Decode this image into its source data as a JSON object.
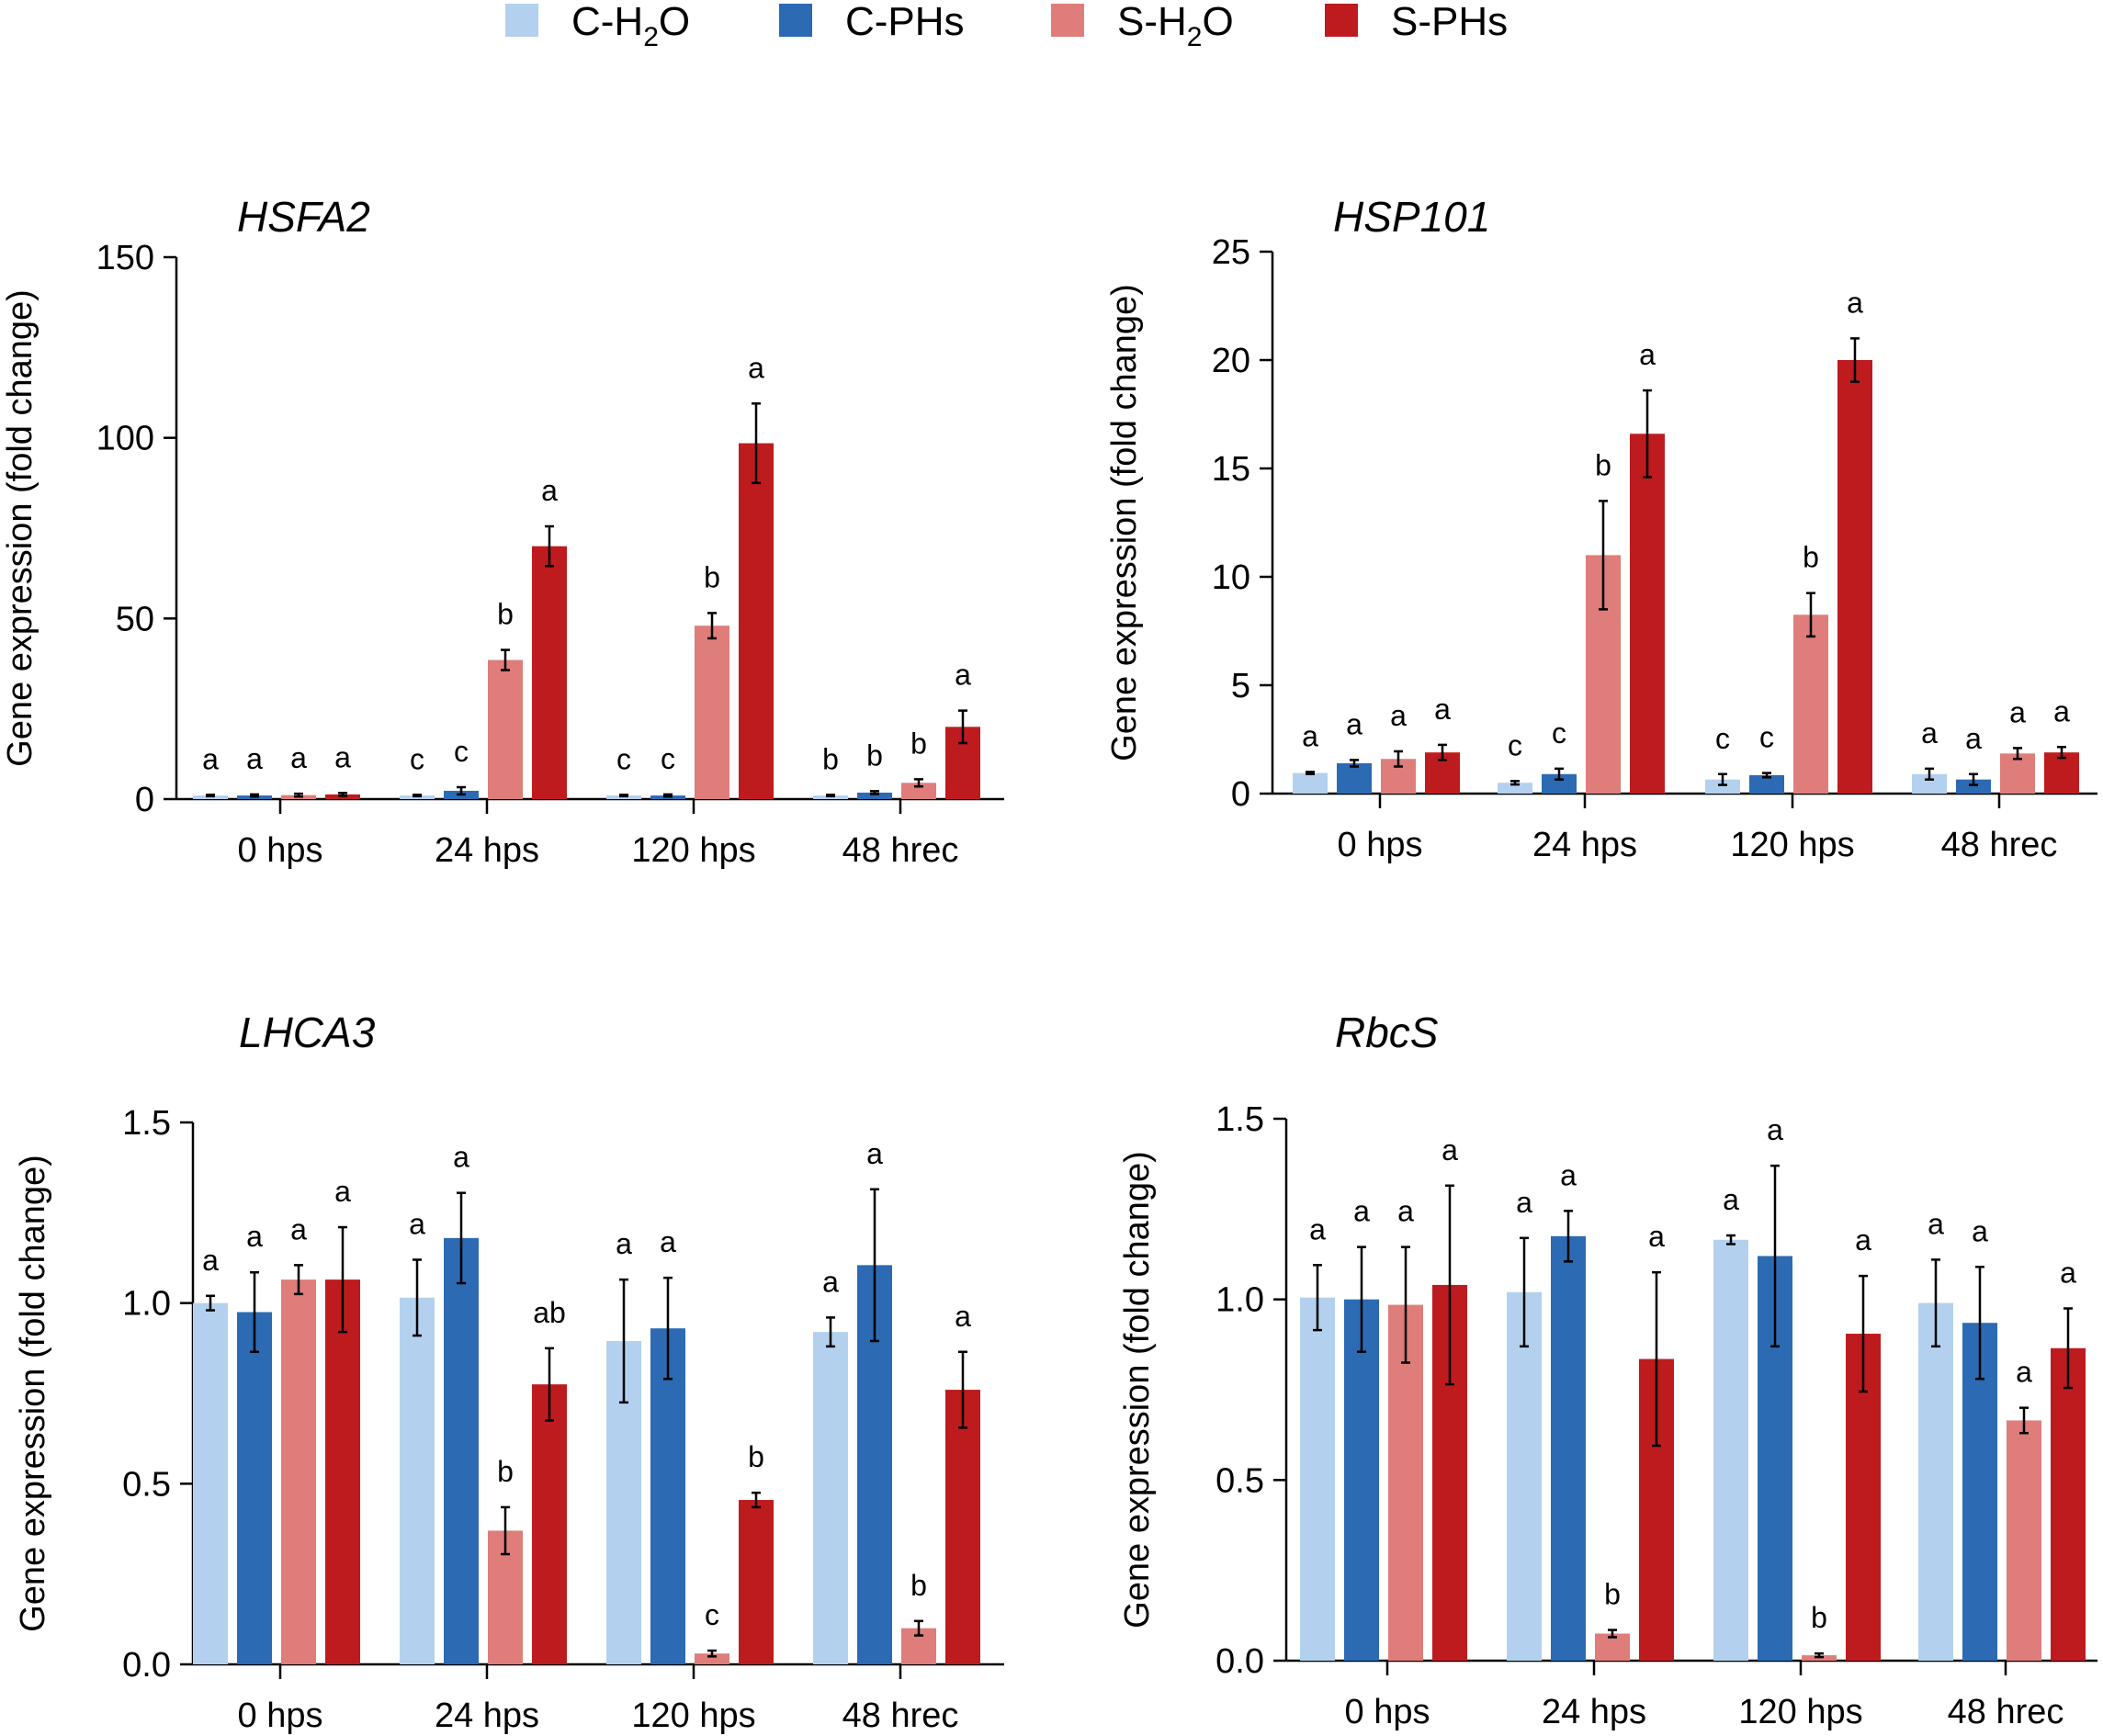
{
  "legend": {
    "items": [
      {
        "label": "C-H",
        "sub": "2",
        "tail": "O",
        "color": "#b3d1ee"
      },
      {
        "label": "C-PHs",
        "sub": "",
        "tail": "",
        "color": "#2c6ab3"
      },
      {
        "label": "S-H",
        "sub": "2",
        "tail": "O",
        "color": "#de7d7a"
      },
      {
        "label": "S-PHs",
        "sub": "",
        "tail": "",
        "color": "#be1b1e"
      }
    ]
  },
  "chart_data": [
    {
      "type": "bar",
      "title": "HSFA2",
      "ylabel": "Gene expression (fold change)",
      "xlabel": "",
      "ylim": [
        0,
        150
      ],
      "yticks": [
        0,
        50,
        100,
        150
      ],
      "ytick_labels": [
        "0",
        "50",
        "100",
        "150"
      ],
      "categories": [
        "0 hps",
        "24 hps",
        "120 hps",
        "48 hrec"
      ],
      "series": [
        {
          "name": "C-H2O",
          "values": [
            1.0,
            1.0,
            1.0,
            1.0
          ],
          "errors": [
            0.2,
            0.2,
            0.2,
            0.2
          ],
          "letters": [
            "a",
            "c",
            "c",
            "b"
          ]
        },
        {
          "name": "C-PHs",
          "values": [
            1.0,
            2.3,
            1.0,
            1.8
          ],
          "errors": [
            0.3,
            1.0,
            0.3,
            0.4
          ],
          "letters": [
            "a",
            "c",
            "c",
            "b"
          ]
        },
        {
          "name": "S-H2O",
          "values": [
            1.1,
            38.5,
            48.0,
            4.5
          ],
          "errors": [
            0.4,
            2.8,
            3.5,
            1.0
          ],
          "letters": [
            "a",
            "b",
            "b",
            "b"
          ]
        },
        {
          "name": "S-PHs",
          "values": [
            1.3,
            70.0,
            98.5,
            20.0
          ],
          "errors": [
            0.4,
            5.5,
            11.0,
            4.5
          ],
          "letters": [
            "a",
            "a",
            "a",
            "a"
          ]
        }
      ]
    },
    {
      "type": "bar",
      "title": "HSP101",
      "ylabel": "Gene expression (fold change)",
      "xlabel": "",
      "ylim": [
        0,
        25
      ],
      "yticks": [
        0,
        5,
        10,
        15,
        20,
        25
      ],
      "ytick_labels": [
        "0",
        "5",
        "10",
        "15",
        "20",
        "25"
      ],
      "categories": [
        "0 hps",
        "24 hps",
        "120 hps",
        "48 hrec"
      ],
      "series": [
        {
          "name": "C-H2O",
          "values": [
            0.95,
            0.5,
            0.65,
            0.9
          ],
          "errors": [
            0.05,
            0.08,
            0.25,
            0.25
          ],
          "letters": [
            "a",
            "c",
            "c",
            "a"
          ]
        },
        {
          "name": "C-PHs",
          "values": [
            1.4,
            0.9,
            0.85,
            0.65
          ],
          "errors": [
            0.15,
            0.25,
            0.1,
            0.25
          ],
          "letters": [
            "a",
            "c",
            "c",
            "a"
          ]
        },
        {
          "name": "S-H2O",
          "values": [
            1.6,
            11.0,
            8.25,
            1.85
          ],
          "errors": [
            0.35,
            2.5,
            1.0,
            0.25
          ],
          "letters": [
            "a",
            "b",
            "b",
            "a"
          ]
        },
        {
          "name": "S-PHs",
          "values": [
            1.9,
            16.6,
            20.0,
            1.9
          ],
          "errors": [
            0.35,
            2.0,
            1.0,
            0.25
          ],
          "letters": [
            "a",
            "a",
            "a",
            "a"
          ]
        }
      ]
    },
    {
      "type": "bar",
      "title": "LHCA3",
      "ylabel": "Gene expression (fold change)",
      "xlabel": "",
      "ylim": [
        0,
        1.5
      ],
      "yticks": [
        0,
        0.5,
        1.0,
        1.5
      ],
      "ytick_labels": [
        "0.0",
        "0.5",
        "1.0",
        "1.5"
      ],
      "categories": [
        "0 hps",
        "24 hps",
        "120 hps",
        "48 hrec"
      ],
      "series": [
        {
          "name": "C-H2O",
          "values": [
            1.0,
            1.015,
            0.895,
            0.92
          ],
          "errors": [
            0.02,
            0.105,
            0.17,
            0.04
          ],
          "letters": [
            "a",
            "a",
            "a",
            "a"
          ]
        },
        {
          "name": "C-PHs",
          "values": [
            0.975,
            1.18,
            0.93,
            1.105
          ],
          "errors": [
            0.11,
            0.125,
            0.14,
            0.21
          ],
          "letters": [
            "a",
            "a",
            "a",
            "a"
          ]
        },
        {
          "name": "S-H2O",
          "values": [
            1.065,
            0.37,
            0.03,
            0.1
          ],
          "errors": [
            0.04,
            0.065,
            0.008,
            0.02
          ],
          "letters": [
            "a",
            "b",
            "c",
            "b"
          ]
        },
        {
          "name": "S-PHs",
          "values": [
            1.065,
            0.775,
            0.455,
            0.76
          ],
          "errors": [
            0.145,
            0.1,
            0.02,
            0.105
          ],
          "letters": [
            "a",
            "ab",
            "b",
            "a"
          ]
        }
      ]
    },
    {
      "type": "bar",
      "title": "RbcS",
      "ylabel": "Gene expression (fold change)",
      "xlabel": "",
      "ylim": [
        0,
        1.5
      ],
      "yticks": [
        0,
        0.5,
        1.0,
        1.5
      ],
      "ytick_labels": [
        "0.0",
        "0.5",
        "1.0",
        "1.5"
      ],
      "categories": [
        "0 hps",
        "24 hps",
        "120 hps",
        "48 hrec"
      ],
      "series": [
        {
          "name": "C-H2O",
          "values": [
            1.005,
            1.02,
            1.165,
            0.99
          ],
          "errors": [
            0.09,
            0.15,
            0.012,
            0.12
          ],
          "letters": [
            "a",
            "a",
            "a",
            "a"
          ]
        },
        {
          "name": "C-PHs",
          "values": [
            1.0,
            1.175,
            1.12,
            0.935
          ],
          "errors": [
            0.145,
            0.07,
            0.25,
            0.155
          ],
          "letters": [
            "a",
            "a",
            "a",
            "a"
          ]
        },
        {
          "name": "S-H2O",
          "values": [
            0.985,
            0.075,
            0.015,
            0.665
          ],
          "errors": [
            0.16,
            0.01,
            0.005,
            0.035
          ],
          "letters": [
            "a",
            "b",
            "b",
            "a"
          ]
        },
        {
          "name": "S-PHs",
          "values": [
            1.04,
            0.835,
            0.905,
            0.865
          ],
          "errors": [
            0.275,
            0.24,
            0.16,
            0.11
          ],
          "letters": [
            "a",
            "a",
            "a",
            "a"
          ]
        }
      ]
    }
  ]
}
